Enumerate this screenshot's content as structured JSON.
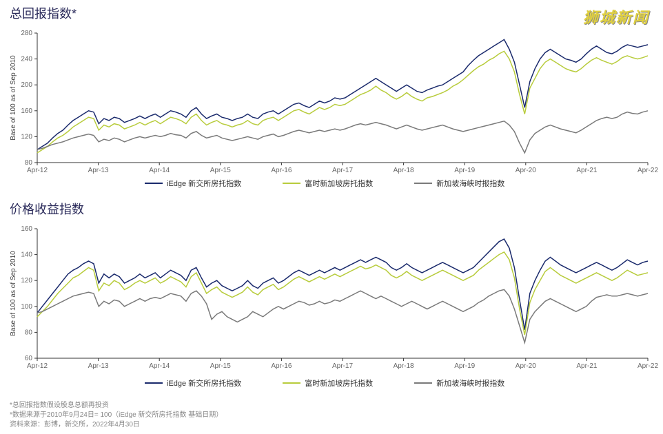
{
  "watermark": "狮城新闻",
  "chart1": {
    "title": "总回报指数*",
    "title_color": "#2a2a5a",
    "title_fontsize": 18,
    "y_label": "Base of 100 as of Sep 2010",
    "type": "line",
    "background_color": "#ffffff",
    "axis_color": "#333333",
    "text_color": "#666666",
    "xlim": [
      0,
      120
    ],
    "ylim": [
      80,
      280
    ],
    "ytick_step": 40,
    "y_ticks": [
      80,
      120,
      160,
      200,
      240,
      280
    ],
    "x_labels": [
      "Apr-12",
      "Apr-13",
      "Apr-14",
      "Apr-15",
      "Apr-16",
      "Apr-17",
      "Apr-18",
      "Apr-19",
      "Apr-20",
      "Apr-21",
      "Apr-22"
    ],
    "series": [
      {
        "name": "iEdge 新交所房托指数",
        "color": "#1a2a6c",
        "line_width": 1.5,
        "data": [
          100,
          105,
          110,
          118,
          125,
          130,
          138,
          145,
          150,
          155,
          160,
          158,
          140,
          148,
          145,
          150,
          148,
          142,
          145,
          148,
          152,
          148,
          152,
          155,
          150,
          155,
          160,
          158,
          155,
          150,
          160,
          165,
          155,
          148,
          152,
          155,
          150,
          148,
          145,
          148,
          150,
          155,
          150,
          148,
          155,
          158,
          160,
          155,
          160,
          165,
          170,
          172,
          168,
          165,
          170,
          175,
          172,
          175,
          180,
          178,
          180,
          185,
          190,
          195,
          200,
          205,
          210,
          205,
          200,
          195,
          190,
          195,
          200,
          195,
          190,
          188,
          192,
          195,
          198,
          200,
          205,
          210,
          215,
          220,
          230,
          238,
          245,
          250,
          255,
          260,
          265,
          270,
          255,
          235,
          200,
          165,
          205,
          225,
          240,
          250,
          255,
          250,
          245,
          240,
          238,
          235,
          240,
          248,
          255,
          260,
          255,
          250,
          248,
          252,
          258,
          262,
          260,
          258,
          260,
          262
        ]
      },
      {
        "name": "富时新加坡房托指数",
        "color": "#b8cc3c",
        "line_width": 1.5,
        "data": [
          95,
          100,
          105,
          112,
          118,
          122,
          128,
          135,
          140,
          145,
          150,
          148,
          130,
          138,
          135,
          140,
          138,
          132,
          135,
          138,
          142,
          138,
          142,
          145,
          140,
          145,
          150,
          148,
          145,
          140,
          150,
          155,
          145,
          138,
          142,
          145,
          140,
          138,
          135,
          138,
          140,
          145,
          140,
          138,
          145,
          148,
          150,
          145,
          150,
          155,
          160,
          162,
          158,
          155,
          160,
          165,
          162,
          165,
          170,
          168,
          170,
          175,
          180,
          185,
          188,
          192,
          198,
          192,
          188,
          182,
          178,
          182,
          188,
          182,
          178,
          175,
          180,
          182,
          185,
          188,
          192,
          198,
          202,
          208,
          215,
          222,
          228,
          232,
          238,
          242,
          248,
          252,
          240,
          220,
          185,
          155,
          195,
          210,
          225,
          235,
          240,
          235,
          230,
          225,
          222,
          220,
          225,
          232,
          238,
          242,
          238,
          235,
          232,
          236,
          242,
          245,
          242,
          240,
          242,
          245
        ]
      },
      {
        "name": "新加坡海峡时报指数",
        "color": "#7a7a7a",
        "line_width": 1.5,
        "data": [
          100,
          102,
          105,
          108,
          110,
          112,
          115,
          118,
          120,
          122,
          124,
          122,
          112,
          116,
          114,
          118,
          116,
          112,
          115,
          118,
          120,
          118,
          120,
          122,
          120,
          122,
          125,
          123,
          122,
          118,
          125,
          128,
          122,
          118,
          120,
          122,
          118,
          116,
          114,
          116,
          118,
          120,
          118,
          116,
          120,
          122,
          124,
          120,
          122,
          125,
          128,
          130,
          128,
          126,
          128,
          130,
          128,
          130,
          132,
          130,
          132,
          135,
          138,
          140,
          138,
          140,
          142,
          140,
          138,
          135,
          132,
          135,
          138,
          135,
          132,
          130,
          132,
          134,
          136,
          138,
          135,
          132,
          130,
          128,
          130,
          132,
          134,
          136,
          138,
          140,
          142,
          144,
          138,
          128,
          110,
          95,
          115,
          125,
          130,
          135,
          138,
          135,
          132,
          130,
          128,
          126,
          130,
          135,
          140,
          145,
          148,
          150,
          148,
          150,
          155,
          158,
          156,
          155,
          158,
          160
        ]
      }
    ]
  },
  "chart2": {
    "title": "价格收益指数",
    "title_color": "#2a2a5a",
    "title_fontsize": 18,
    "y_label": "Base of 100 as of Sep 2010",
    "type": "line",
    "background_color": "#ffffff",
    "axis_color": "#333333",
    "text_color": "#666666",
    "xlim": [
      0,
      120
    ],
    "ylim": [
      60,
      160
    ],
    "ytick_step": 20,
    "y_ticks": [
      60,
      80,
      100,
      120,
      140,
      160
    ],
    "x_labels": [
      "Apr-12",
      "Apr-13",
      "Apr-14",
      "Apr-15",
      "Apr-16",
      "Apr-17",
      "Apr-18",
      "Apr-19",
      "Apr-20",
      "Apr-21",
      "Apr-22"
    ],
    "series": [
      {
        "name": "iEdge 新交所房托指数",
        "color": "#1a2a6c",
        "line_width": 1.5,
        "data": [
          95,
          100,
          105,
          110,
          115,
          120,
          125,
          128,
          130,
          133,
          135,
          133,
          118,
          125,
          122,
          125,
          123,
          118,
          120,
          122,
          125,
          122,
          124,
          126,
          122,
          125,
          128,
          126,
          124,
          120,
          128,
          130,
          122,
          115,
          118,
          120,
          116,
          114,
          112,
          114,
          116,
          120,
          116,
          114,
          118,
          120,
          122,
          118,
          120,
          123,
          126,
          128,
          126,
          124,
          126,
          128,
          126,
          128,
          130,
          128,
          130,
          132,
          134,
          136,
          134,
          136,
          138,
          136,
          134,
          130,
          128,
          130,
          133,
          130,
          128,
          126,
          128,
          130,
          132,
          134,
          132,
          130,
          128,
          126,
          128,
          130,
          134,
          138,
          142,
          146,
          150,
          152,
          145,
          130,
          105,
          82,
          110,
          120,
          128,
          135,
          138,
          135,
          132,
          130,
          128,
          126,
          128,
          130,
          132,
          134,
          132,
          130,
          128,
          130,
          133,
          136,
          134,
          132,
          134,
          135
        ]
      },
      {
        "name": "富时新加坡房托指数",
        "color": "#b8cc3c",
        "line_width": 1.5,
        "data": [
          92,
          96,
          100,
          105,
          110,
          114,
          118,
          122,
          124,
          127,
          130,
          128,
          112,
          118,
          116,
          120,
          118,
          113,
          115,
          118,
          120,
          118,
          120,
          122,
          118,
          120,
          123,
          121,
          119,
          115,
          123,
          126,
          118,
          110,
          113,
          115,
          111,
          109,
          107,
          109,
          111,
          115,
          111,
          109,
          113,
          115,
          117,
          113,
          115,
          118,
          121,
          123,
          121,
          119,
          121,
          123,
          121,
          123,
          125,
          123,
          125,
          127,
          129,
          131,
          129,
          130,
          132,
          130,
          128,
          124,
          122,
          124,
          127,
          124,
          122,
          120,
          122,
          124,
          126,
          128,
          126,
          124,
          122,
          120,
          122,
          124,
          128,
          131,
          134,
          137,
          140,
          142,
          136,
          122,
          98,
          78,
          103,
          113,
          120,
          127,
          130,
          127,
          124,
          122,
          120,
          118,
          120,
          122,
          124,
          126,
          124,
          122,
          120,
          122,
          125,
          128,
          126,
          124,
          125,
          126
        ]
      },
      {
        "name": "新加坡海峡时报指数",
        "color": "#7a7a7a",
        "line_width": 1.5,
        "data": [
          95,
          96,
          98,
          100,
          102,
          104,
          106,
          108,
          109,
          110,
          111,
          110,
          100,
          104,
          102,
          105,
          104,
          100,
          102,
          104,
          106,
          104,
          106,
          107,
          106,
          108,
          110,
          109,
          108,
          104,
          110,
          112,
          108,
          102,
          90,
          94,
          96,
          92,
          90,
          88,
          90,
          92,
          96,
          94,
          92,
          95,
          98,
          100,
          98,
          100,
          102,
          104,
          103,
          101,
          102,
          104,
          102,
          103,
          105,
          104,
          106,
          108,
          110,
          112,
          110,
          108,
          106,
          108,
          106,
          104,
          102,
          100,
          102,
          104,
          102,
          100,
          98,
          100,
          102,
          104,
          102,
          100,
          98,
          96,
          98,
          100,
          103,
          105,
          108,
          110,
          112,
          113,
          108,
          98,
          85,
          72,
          90,
          96,
          100,
          104,
          106,
          104,
          102,
          100,
          98,
          96,
          98,
          100,
          104,
          107,
          108,
          109,
          108,
          108,
          109,
          110,
          109,
          108,
          109,
          110
        ]
      }
    ]
  },
  "legend_labels": {
    "s1": "iEdge 新交所房托指数",
    "s2": "富时新加坡房托指数",
    "s3": "新加坡海峡时报指数"
  },
  "legend_colors": {
    "s1": "#1a2a6c",
    "s2": "#b8cc3c",
    "s3": "#7a7a7a"
  },
  "footnotes": {
    "l1": "*总回报指数假设股息总额再投资",
    "l2": "*数据来源于2010年9月24日= 100（iEdge 新交所房托指数 基础日期）",
    "l3": "资料来源：彭博，新交所，2022年4月30日"
  }
}
